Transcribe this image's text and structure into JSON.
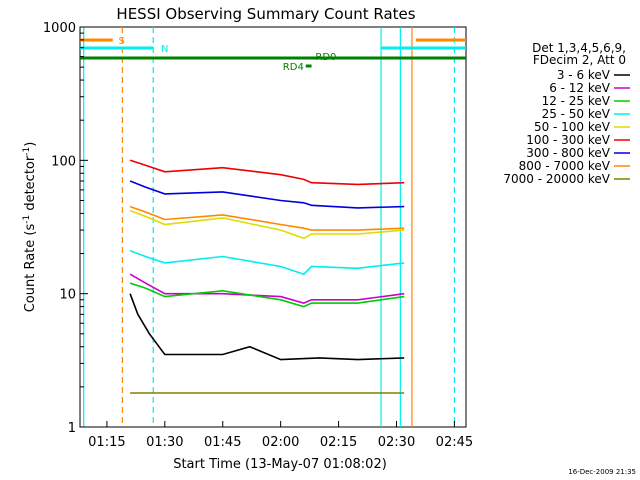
{
  "chart_data": {
    "type": "line",
    "title": "HESSI Observing Summary Count Rates",
    "xlabel": "Start Time (13-May-07 01:08:02)",
    "ylabel_main": "Count Rate (s",
    "ylabel_sup1": "-1",
    "ylabel_mid": " detector",
    "ylabel_sup2": "-1",
    "ylabel_end": ")",
    "yscale": "log",
    "ylim": [
      1,
      1000
    ],
    "xlim": [
      "01:08:02",
      "02:48:00"
    ],
    "x_ticks": [
      "01:15",
      "01:30",
      "01:45",
      "02:00",
      "02:15",
      "02:30",
      "02:45"
    ],
    "y_ticks": [
      "1",
      "10",
      "100",
      "1000"
    ],
    "legend_position": "right",
    "legend_header": [
      "Det 1,3,4,5,6,9,",
      "FDecim 2, Att 0"
    ],
    "series": [
      {
        "name": "3 - 6 keV",
        "color": "#000000",
        "x": [
          "01:21",
          "01:23",
          "01:26",
          "01:30",
          "01:45",
          "01:52",
          "02:00",
          "02:10",
          "02:20",
          "02:32"
        ],
        "values": [
          10,
          7,
          5,
          3.5,
          3.5,
          4,
          3.2,
          3.3,
          3.2,
          3.3
        ]
      },
      {
        "name": "6 - 12 keV",
        "color": "#cc00cc",
        "x": [
          "01:21",
          "01:25",
          "01:30",
          "01:45",
          "02:00",
          "02:06",
          "02:08",
          "02:20",
          "02:32"
        ],
        "values": [
          14,
          12,
          10,
          10,
          9.5,
          8.5,
          9,
          9,
          10
        ]
      },
      {
        "name": "12 - 25 keV",
        "color": "#00cc00",
        "x": [
          "01:21",
          "01:25",
          "01:30",
          "01:45",
          "02:00",
          "02:06",
          "02:08",
          "02:20",
          "02:32"
        ],
        "values": [
          12,
          11,
          9.5,
          10.5,
          9,
          8,
          8.5,
          8.5,
          9.5
        ]
      },
      {
        "name": "25 - 50 keV",
        "color": "#00eeee",
        "x": [
          "01:21",
          "01:25",
          "01:30",
          "01:45",
          "02:00",
          "02:06",
          "02:08",
          "02:20",
          "02:32"
        ],
        "values": [
          21,
          19,
          17,
          19,
          16,
          14,
          16,
          15.5,
          17
        ]
      },
      {
        "name": "50 - 100 keV",
        "color": "#dddd00",
        "x": [
          "01:21",
          "01:25",
          "01:30",
          "01:45",
          "02:00",
          "02:06",
          "02:08",
          "02:20",
          "02:32"
        ],
        "values": [
          42,
          38,
          33,
          37,
          30,
          26,
          28,
          28,
          30
        ]
      },
      {
        "name": "100 - 300 keV",
        "color": "#ee0000",
        "x": [
          "01:21",
          "01:25",
          "01:30",
          "01:45",
          "02:00",
          "02:06",
          "02:08",
          "02:20",
          "02:32"
        ],
        "values": [
          100,
          92,
          82,
          88,
          78,
          72,
          68,
          66,
          68
        ]
      },
      {
        "name": "300 - 800 keV",
        "color": "#0000dd",
        "x": [
          "01:21",
          "01:25",
          "01:30",
          "01:45",
          "02:00",
          "02:06",
          "02:08",
          "02:20",
          "02:32"
        ],
        "values": [
          70,
          63,
          56,
          58,
          50,
          48,
          46,
          44,
          45
        ]
      },
      {
        "name": "800 - 7000 keV",
        "color": "#ff8800",
        "x": [
          "01:21",
          "01:25",
          "01:30",
          "01:45",
          "02:00",
          "02:06",
          "02:08",
          "02:20",
          "02:32"
        ],
        "values": [
          45,
          41,
          36,
          39,
          33,
          31,
          30,
          30,
          31
        ]
      },
      {
        "name": "7000 - 20000 keV",
        "color": "#808000",
        "x": [
          "01:21",
          "01:30",
          "01:45",
          "02:00",
          "02:15",
          "02:32"
        ],
        "values": [
          1.8,
          1.8,
          1.8,
          1.8,
          1.8,
          1.8
        ]
      }
    ],
    "vertical_markers": [
      {
        "x": "01:09:00",
        "color": "#00eeee",
        "style": "solid"
      },
      {
        "x": "01:19:00",
        "color": "#ff8800",
        "style": "dashed"
      },
      {
        "x": "01:27:00",
        "color": "#00eeee",
        "style": "dashed"
      },
      {
        "x": "02:26:00",
        "color": "#00eeee",
        "style": "solid"
      },
      {
        "x": "02:31:00",
        "color": "#00eeee",
        "style": "solid"
      },
      {
        "x": "02:34:00",
        "color": "#ff8800",
        "style": "solid"
      },
      {
        "x": "02:45:00",
        "color": "#00eeee",
        "style": "dashed"
      }
    ],
    "flag_labels": [
      {
        "text": "S",
        "color": "#ff8800"
      },
      {
        "text": "N",
        "color": "#00eeee"
      },
      {
        "text": "RD0",
        "color": "#008000"
      },
      {
        "text": "RD4",
        "color": "#008000"
      }
    ]
  },
  "footer": {
    "timestamp": "16-Dec-2009 21:35"
  }
}
